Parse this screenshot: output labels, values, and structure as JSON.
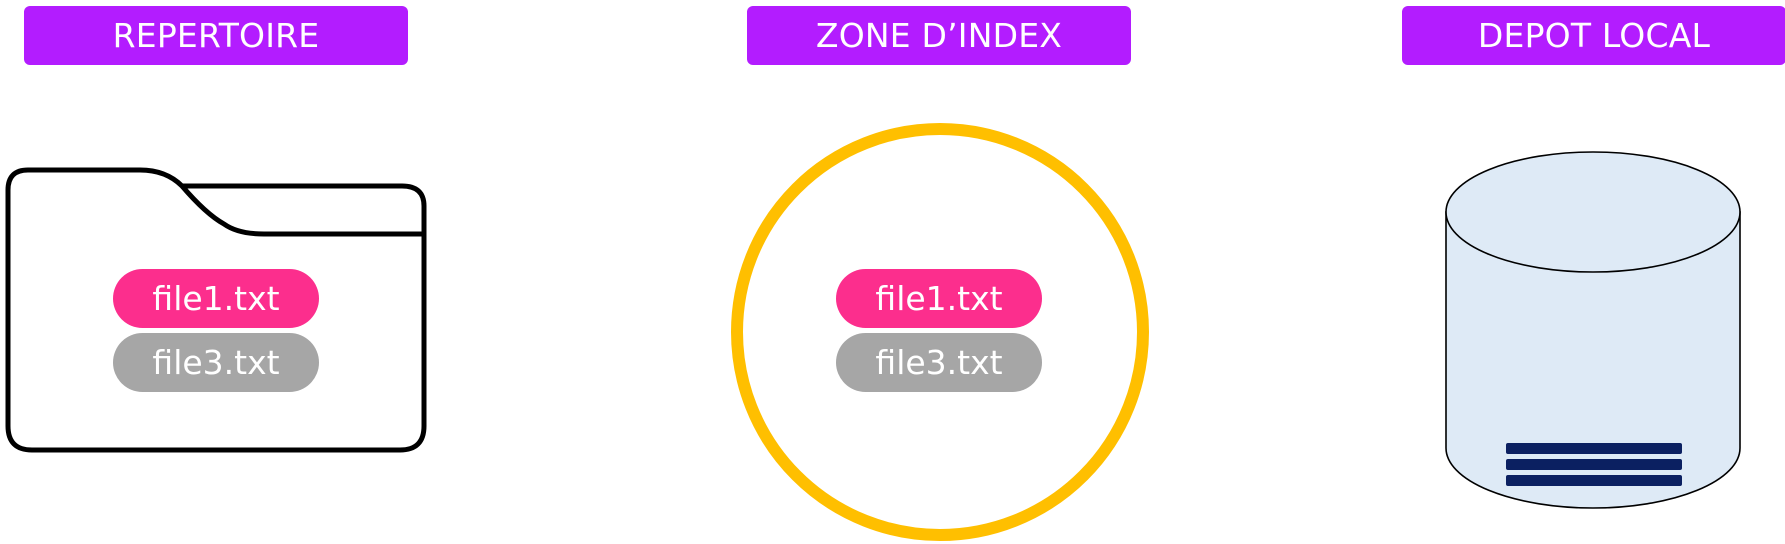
{
  "colors": {
    "header_bg": "#b31cff",
    "file_modified": "#fc2e8d",
    "file_unmodified": "#a6a6a6",
    "index_ring": "#ffbf00",
    "db_fill": "#deeaf6",
    "db_lines": "#0b2061"
  },
  "columns": [
    {
      "title": "REPERTOIRE",
      "icon": "folder-icon",
      "files": [
        "file1.txt",
        "file3.txt"
      ]
    },
    {
      "title": "ZONE D’INDEX",
      "icon": "circle-icon",
      "files": [
        "file1.txt",
        "file3.txt"
      ]
    },
    {
      "title": "DEPOT LOCAL",
      "icon": "database-icon",
      "files": []
    }
  ]
}
